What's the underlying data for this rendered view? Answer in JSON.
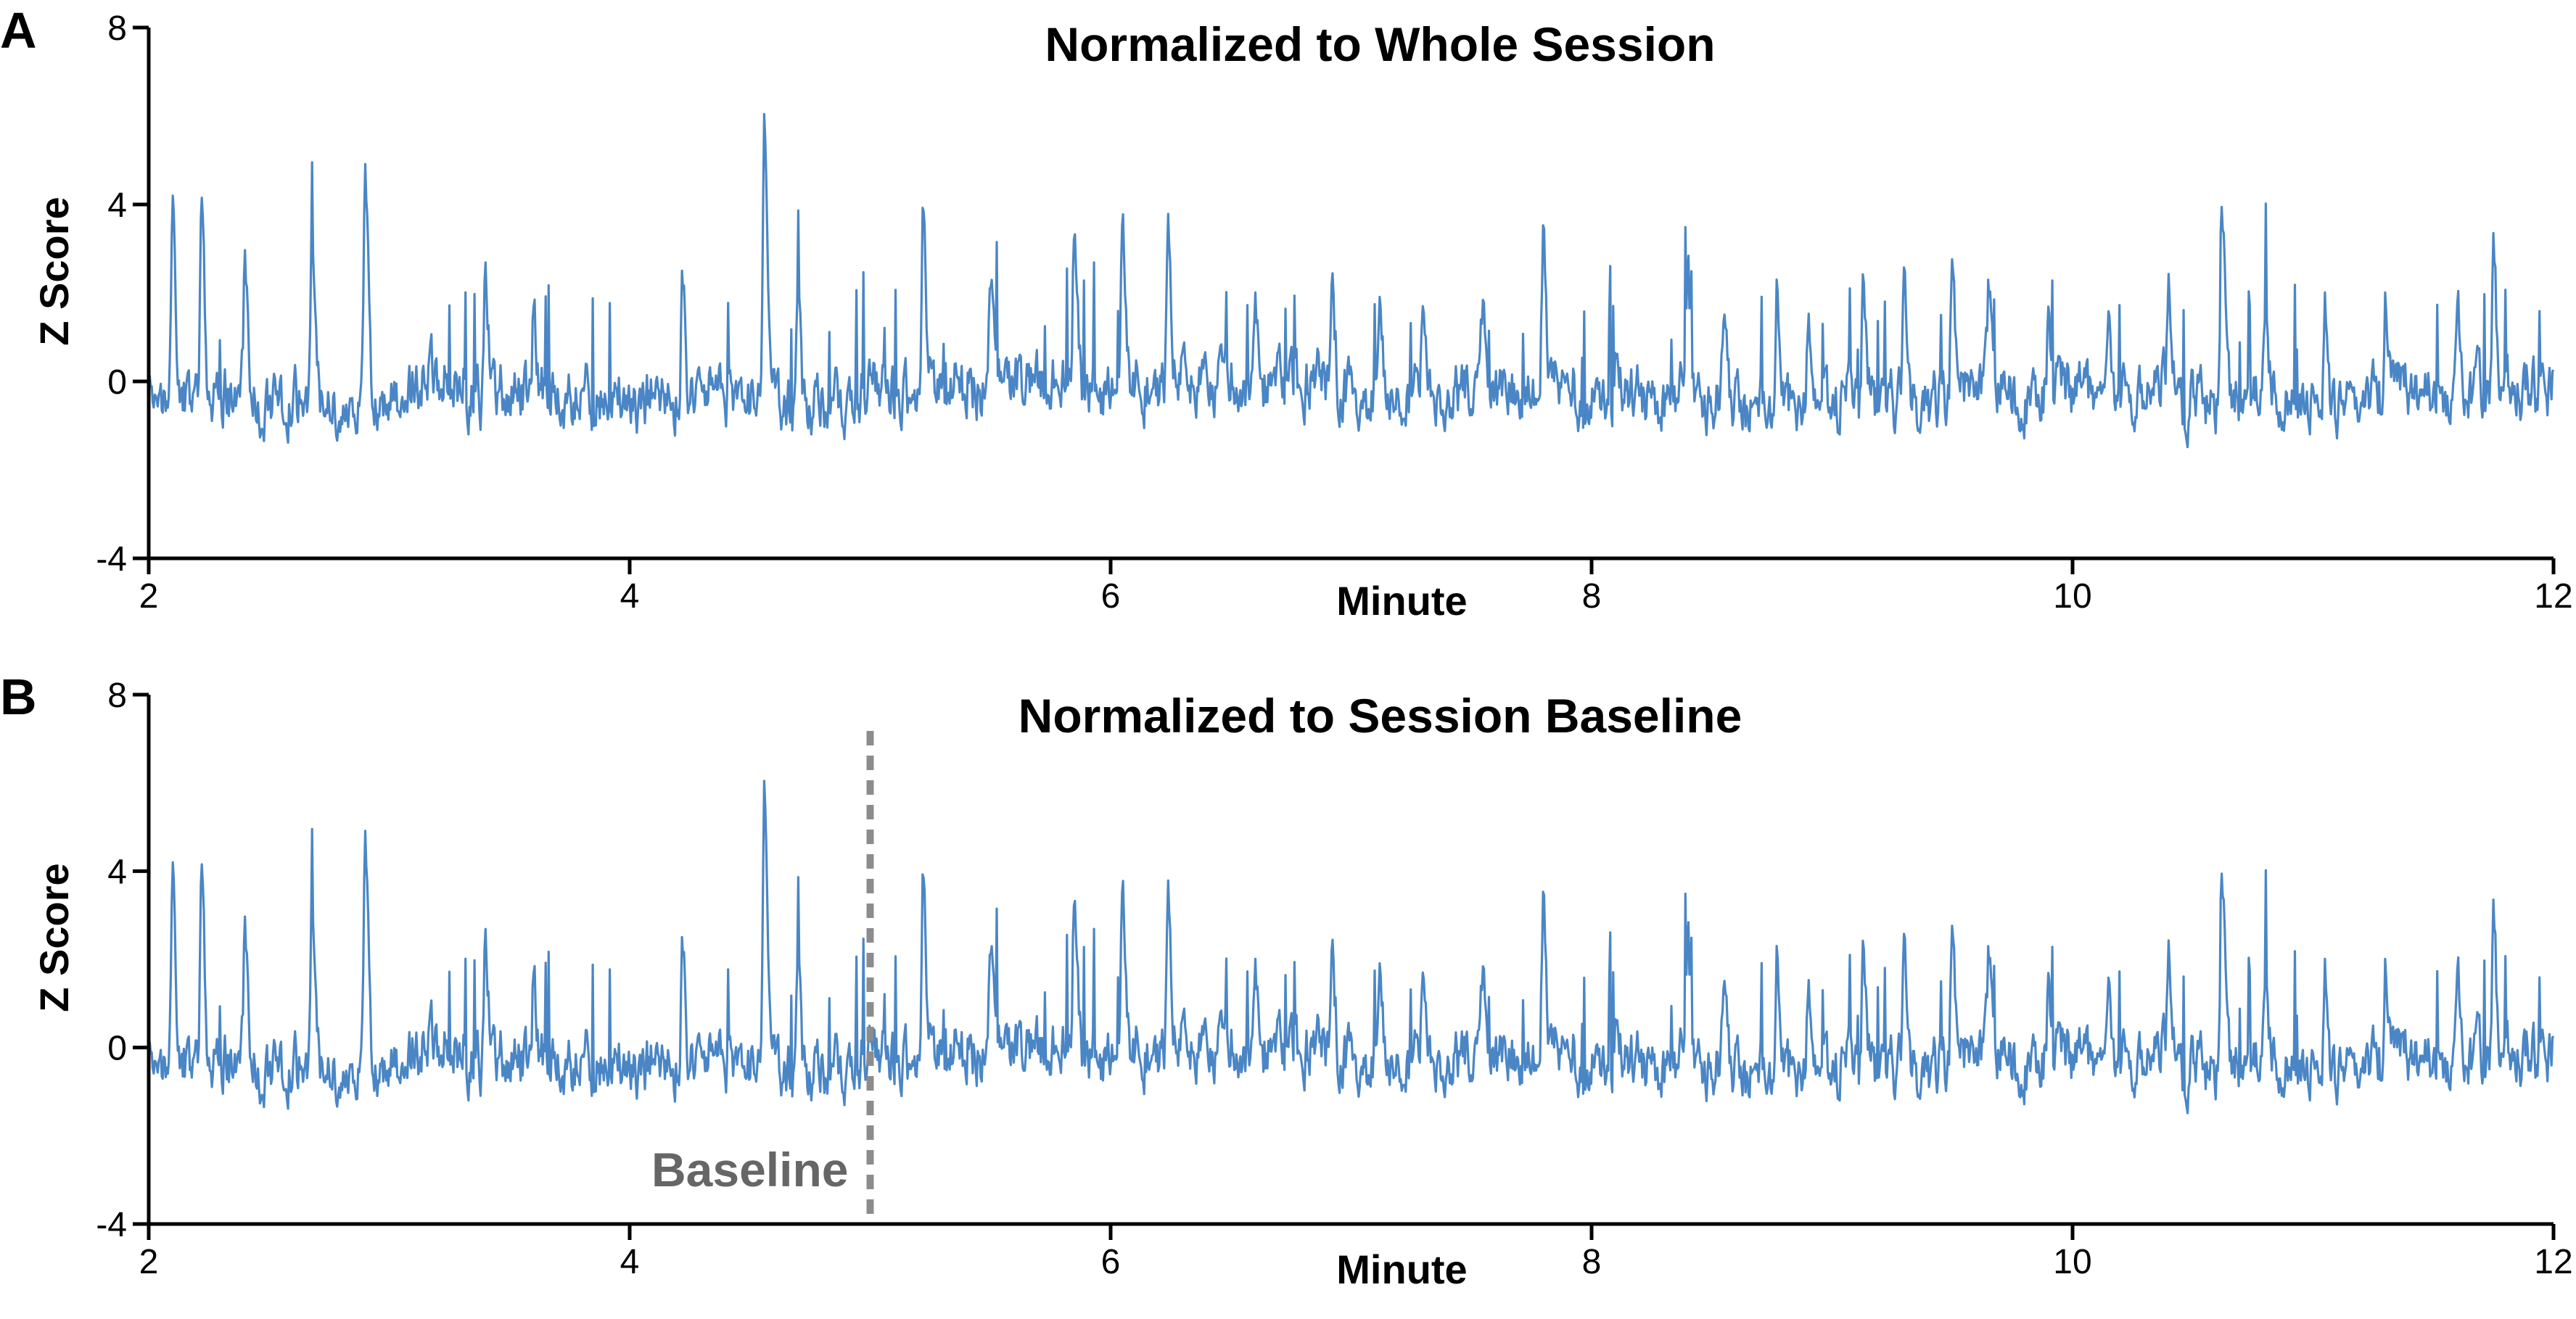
{
  "colors": {
    "trace": "#4a86c5",
    "baseline_marker": "#8c8c8c",
    "baseline_label": "#666666"
  },
  "chart_data": [
    {
      "type": "line",
      "panel_label": "A",
      "title": "Normalized to Whole Session",
      "xlabel": "Minute",
      "ylabel": "Z Score",
      "xlim": [
        2,
        12
      ],
      "ylim": [
        -4,
        8
      ],
      "xticks": [
        2,
        4,
        6,
        8,
        10,
        12
      ],
      "yticks": [
        -4,
        0,
        4,
        8
      ],
      "grid": false,
      "legend": "none",
      "peaks": {
        "x": [
          2.1,
          2.22,
          2.4,
          2.68,
          2.9,
          3.4,
          3.6,
          4.22,
          4.56,
          4.7,
          5.22,
          5.5,
          5.85,
          6.05,
          6.24,
          6.6,
          6.92,
          7.12,
          7.3,
          7.55,
          7.8,
          8.1,
          8.4,
          8.55,
          8.77,
          8.9,
          9.13,
          9.3,
          9.5,
          9.65,
          9.9,
          10.15,
          10.4,
          10.62,
          10.8,
          11.05,
          11.3,
          11.6,
          11.75
        ],
        "y": [
          5.0,
          4.6,
          3.1,
          4.5,
          5.4,
          3.5,
          2.2,
          2.9,
          6.2,
          2.7,
          4.4,
          3.1,
          4.0,
          4.2,
          3.8,
          2.6,
          3.3,
          2.6,
          3.2,
          2.9,
          4.1,
          1.8,
          2.8,
          1.9,
          3.4,
          2.6,
          2.8,
          2.6,
          3.9,
          2.3,
          1.8,
          2.0,
          2.9,
          5.3,
          2.9,
          2.6,
          2.7,
          2.3,
          3.7
        ]
      }
    },
    {
      "type": "line",
      "panel_label": "B",
      "title": "Normalized to Session Baseline",
      "xlabel": "Minute",
      "ylabel": "Z Score",
      "xlim": [
        2,
        12
      ],
      "ylim": [
        -4,
        8
      ],
      "xticks": [
        2,
        4,
        6,
        8,
        10,
        12
      ],
      "yticks": [
        -4,
        0,
        4,
        8
      ],
      "grid": false,
      "legend": "none",
      "annotation": {
        "label": "Baseline",
        "x": 5
      },
      "peaks": {
        "x": [
          2.1,
          2.22,
          2.4,
          2.68,
          2.9,
          3.4,
          3.6,
          4.22,
          4.56,
          4.7,
          5.22,
          5.5,
          5.85,
          6.05,
          6.24,
          6.6,
          6.92,
          7.12,
          7.3,
          7.55,
          7.8,
          8.1,
          8.4,
          8.55,
          8.77,
          8.9,
          9.13,
          9.3,
          9.5,
          9.65,
          9.9,
          10.15,
          10.4,
          10.62,
          10.8,
          11.05,
          11.3,
          11.6,
          11.75
        ],
        "y": [
          5.0,
          4.6,
          3.1,
          4.5,
          5.4,
          3.5,
          2.2,
          2.9,
          6.2,
          2.7,
          4.4,
          3.1,
          4.0,
          4.2,
          3.8,
          2.6,
          3.3,
          2.6,
          3.2,
          2.9,
          4.1,
          1.8,
          2.8,
          1.9,
          3.4,
          2.6,
          2.8,
          2.6,
          3.9,
          2.3,
          1.8,
          2.0,
          2.9,
          5.3,
          2.9,
          2.6,
          2.7,
          2.3,
          3.7
        ]
      }
    }
  ]
}
